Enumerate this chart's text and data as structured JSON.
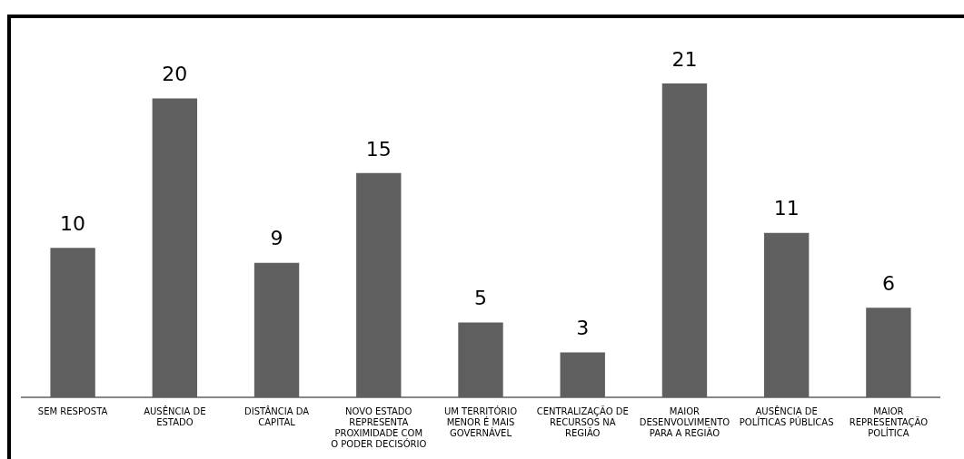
{
  "chart_data": {
    "type": "bar",
    "categories": [
      "SEM RESPOSTA",
      "AUSÊNCIA DE\nESTADO",
      "DISTÂNCIA DA\nCAPITAL",
      "NOVO ESTADO\nREPRESENTA\nPROXIMIDADE COM\nO PODER DECISÓRIO",
      "UM TERRITÓRIO\nMENOR É MAIS\nGOVERNÁVEL",
      "CENTRALIZAÇÃO DE\nRECURSOS NA\nREGIÃO",
      "MAIOR\nDESENVOLVIMENTO\nPARA A REGIÃO",
      "AUSÊNCIA DE\nPOLÍTICAS PÚBLICAS",
      "MAIOR\nREPRESENTAÇÃO\nPOLÍTICA"
    ],
    "values": [
      10,
      20,
      9,
      15,
      5,
      3,
      21,
      11,
      6
    ],
    "color": "#5f5f5f",
    "data_labels": true,
    "grid": false,
    "legend": false
  }
}
